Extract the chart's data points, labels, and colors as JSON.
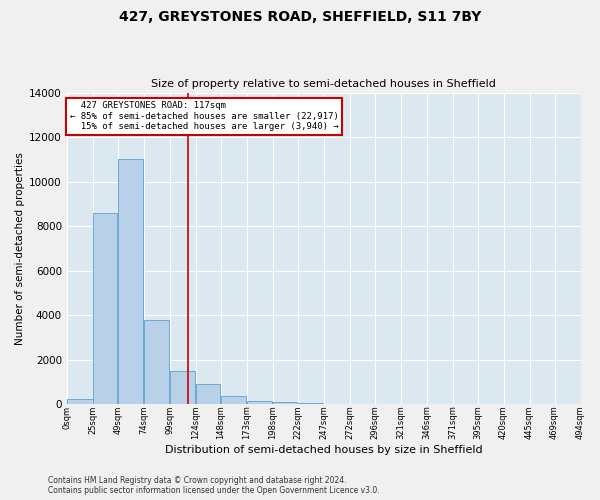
{
  "title_line1": "427, GREYSTONES ROAD, SHEFFIELD, S11 7BY",
  "title_line2": "Size of property relative to semi-detached houses in Sheffield",
  "xlabel": "Distribution of semi-detached houses by size in Sheffield",
  "ylabel": "Number of semi-detached properties",
  "bar_color": "#b8d0e8",
  "bar_edge_color": "#6aaad4",
  "bin_edges": [
    0,
    25,
    49,
    74,
    99,
    124,
    148,
    173,
    198,
    222,
    247,
    272,
    296,
    321,
    346,
    371,
    395,
    420,
    445,
    469,
    494
  ],
  "bin_labels": [
    "0sqm",
    "25sqm",
    "49sqm",
    "74sqm",
    "99sqm",
    "124sqm",
    "148sqm",
    "173sqm",
    "198sqm",
    "222sqm",
    "247sqm",
    "272sqm",
    "296sqm",
    "321sqm",
    "346sqm",
    "371sqm",
    "395sqm",
    "420sqm",
    "445sqm",
    "469sqm",
    "494sqm"
  ],
  "bar_heights": [
    250,
    8600,
    11000,
    3800,
    1500,
    900,
    350,
    150,
    80,
    50,
    30,
    10,
    5,
    0,
    0,
    0,
    0,
    0,
    0,
    0
  ],
  "property_size": 117,
  "property_label": "427 GREYSTONES ROAD: 117sqm",
  "pct_smaller": 85,
  "pct_smaller_count": "22,917",
  "pct_larger": 15,
  "pct_larger_count": "3,940",
  "vline_color": "#cc0000",
  "annotation_box_color": "#ffffff",
  "annotation_box_edge_color": "#cc0000",
  "ylim": [
    0,
    14000
  ],
  "yticks": [
    0,
    2000,
    4000,
    6000,
    8000,
    10000,
    12000,
    14000
  ],
  "grid_color": "#ffffff",
  "bg_color": "#dce8f0",
  "fig_bg_color": "#f0f0f0",
  "footer_line1": "Contains HM Land Registry data © Crown copyright and database right 2024.",
  "footer_line2": "Contains public sector information licensed under the Open Government Licence v3.0."
}
